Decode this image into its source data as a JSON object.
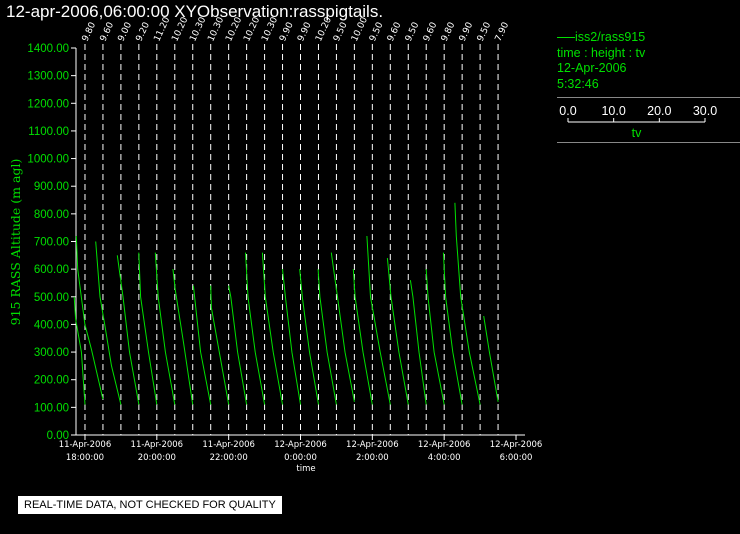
{
  "title": "12-apr-2006,06:00:00  XYObservation:rasspigtails.",
  "legend": {
    "series_label": "iss2/rass915",
    "line2": "time : height : tv",
    "line3": "12-Apr-2006",
    "line4": "5:32:46",
    "scale_ticks": [
      "0.0",
      "10.0",
      "20.0",
      "30.0"
    ],
    "scale_label": "tv"
  },
  "disclaimer": "REAL-TIME DATA, NOT CHECKED FOR QUALITY",
  "colors": {
    "trace": "#00e000",
    "axis": "#ffffff",
    "grid": "#ffffff",
    "background": "#000000"
  },
  "chart_data": {
    "type": "line",
    "xlabel": "time",
    "ylabel": "915 RASS Altitude (m agl)",
    "ylim": [
      0,
      1400
    ],
    "yticks": [
      "0.00",
      "100.00",
      "200.00",
      "300.00",
      "400.00",
      "500.00",
      "600.00",
      "700.00",
      "800.00",
      "900.00",
      "1000.00",
      "1100.00",
      "1200.00",
      "1300.00",
      "1400.00"
    ],
    "xlim_hours": [
      17.75,
      30.25
    ],
    "xticks": [
      {
        "hour": 18,
        "line1": "11-Apr-2006",
        "line2": "18:00:00"
      },
      {
        "hour": 20,
        "line1": "11-Apr-2006",
        "line2": "20:00:00"
      },
      {
        "hour": 22,
        "line1": "11-Apr-2006",
        "line2": "22:00:00"
      },
      {
        "hour": 24,
        "line1": "12-Apr-2006",
        "line2": "0:00:00"
      },
      {
        "hour": 26,
        "line1": "12-Apr-2006",
        "line2": "2:00:00"
      },
      {
        "hour": 28,
        "line1": "12-Apr-2006",
        "line2": "4:00:00"
      },
      {
        "hour": 30,
        "line1": "12-Apr-2006",
        "line2": "6:00:00"
      }
    ],
    "profiles": [
      {
        "hour": 18.0,
        "label": "9.80",
        "points": [
          [
            0.0,
            110
          ],
          [
            1.0,
            300
          ],
          [
            2.6,
            420
          ],
          [
            3.0,
            500
          ]
        ]
      },
      {
        "hour": 18.5,
        "label": "9.60",
        "points": [
          [
            0.0,
            130
          ],
          [
            3.2,
            310
          ],
          [
            5.0,
            400
          ],
          [
            6.0,
            500
          ],
          [
            7.0,
            600
          ],
          [
            7.4,
            720
          ]
        ]
      },
      {
        "hour": 19.0,
        "label": "9.00",
        "points": [
          [
            0.0,
            110
          ],
          [
            2.6,
            250
          ],
          [
            4.5,
            400
          ],
          [
            5.8,
            500
          ],
          [
            7.0,
            700
          ]
        ]
      },
      {
        "hour": 19.5,
        "label": "9.20",
        "points": [
          [
            0.0,
            110
          ],
          [
            2.6,
            300
          ],
          [
            4.4,
            500
          ],
          [
            6.0,
            650
          ]
        ]
      },
      {
        "hour": 20.0,
        "label": "11.20",
        "points": [
          [
            0.0,
            110
          ],
          [
            2.3,
            300
          ],
          [
            4.5,
            500
          ],
          [
            5.0,
            660
          ]
        ]
      },
      {
        "hour": 20.5,
        "label": "10.20",
        "points": [
          [
            0.0,
            110
          ],
          [
            2.6,
            300
          ],
          [
            4.6,
            500
          ],
          [
            5.4,
            660
          ]
        ]
      },
      {
        "hour": 21.0,
        "label": "10.30",
        "points": [
          [
            0.0,
            110
          ],
          [
            2.5,
            330
          ],
          [
            4.8,
            520
          ],
          [
            5.5,
            600
          ]
        ]
      },
      {
        "hour": 21.5,
        "label": "10.30",
        "points": [
          [
            0.0,
            110
          ],
          [
            2.8,
            300
          ],
          [
            4.8,
            540
          ]
        ]
      },
      {
        "hour": 22.0,
        "label": "10.20",
        "points": [
          [
            0.0,
            110
          ],
          [
            2.6,
            300
          ],
          [
            4.8,
            460
          ],
          [
            5.0,
            540
          ]
        ]
      },
      {
        "hour": 22.5,
        "label": "10.20",
        "points": [
          [
            0.0,
            110
          ],
          [
            2.5,
            300
          ],
          [
            4.4,
            500
          ],
          [
            5.0,
            540
          ]
        ]
      },
      {
        "hour": 23.0,
        "label": "10.30",
        "points": [
          [
            0.0,
            110
          ],
          [
            2.6,
            300
          ],
          [
            4.6,
            500
          ],
          [
            5.3,
            660
          ]
        ]
      },
      {
        "hour": 23.5,
        "label": "9.90",
        "points": [
          [
            0.0,
            110
          ],
          [
            2.6,
            300
          ],
          [
            4.8,
            500
          ],
          [
            5.6,
            660
          ]
        ]
      },
      {
        "hour": 24.0,
        "label": "9.90",
        "points": [
          [
            0.0,
            110
          ],
          [
            2.4,
            300
          ],
          [
            4.2,
            500
          ],
          [
            5.0,
            600
          ]
        ]
      },
      {
        "hour": 24.5,
        "label": "10.20",
        "points": [
          [
            0.0,
            110
          ],
          [
            2.5,
            300
          ],
          [
            4.5,
            500
          ],
          [
            5.2,
            600
          ]
        ]
      },
      {
        "hour": 25.0,
        "label": "9.50",
        "points": [
          [
            0.0,
            110
          ],
          [
            2.6,
            300
          ],
          [
            4.6,
            500
          ],
          [
            5.1,
            600
          ]
        ]
      },
      {
        "hour": 25.5,
        "label": "10.00",
        "points": [
          [
            0.0,
            120
          ],
          [
            2.6,
            300
          ],
          [
            4.7,
            500
          ],
          [
            6.0,
            620
          ],
          [
            6.4,
            660
          ]
        ]
      },
      {
        "hour": 26.0,
        "label": "9.50",
        "points": [
          [
            0.0,
            110
          ],
          [
            2.6,
            300
          ],
          [
            4.8,
            500
          ],
          [
            5.3,
            600
          ]
        ]
      },
      {
        "hour": 26.5,
        "label": "9.60",
        "points": [
          [
            0.0,
            110
          ],
          [
            2.8,
            300
          ],
          [
            5.5,
            500
          ],
          [
            6.5,
            720
          ]
        ]
      },
      {
        "hour": 27.0,
        "label": "9.50",
        "points": [
          [
            0.0,
            110
          ],
          [
            2.6,
            300
          ],
          [
            4.8,
            500
          ],
          [
            5.8,
            640
          ]
        ]
      },
      {
        "hour": 27.5,
        "label": "9.60",
        "points": [
          [
            0.0,
            110
          ],
          [
            2.0,
            300
          ],
          [
            3.7,
            500
          ],
          [
            4.4,
            560
          ]
        ]
      },
      {
        "hour": 28.0,
        "label": "9.80",
        "points": [
          [
            0.0,
            110
          ],
          [
            2.8,
            300
          ],
          [
            4.5,
            500
          ],
          [
            5.0,
            600
          ]
        ]
      },
      {
        "hour": 28.5,
        "label": "9.90",
        "points": [
          [
            0.0,
            110
          ],
          [
            2.6,
            300
          ],
          [
            4.6,
            500
          ],
          [
            5.2,
            660
          ]
        ]
      },
      {
        "hour": 29.0,
        "label": "9.50",
        "points": [
          [
            0.0,
            110
          ],
          [
            3.0,
            300
          ],
          [
            5.4,
            500
          ],
          [
            6.6,
            720
          ],
          [
            7.0,
            840
          ]
        ]
      },
      {
        "hour": 29.5,
        "label": "7.90",
        "points": [
          [
            0.0,
            120
          ],
          [
            2.4,
            300
          ],
          [
            4.0,
            430
          ]
        ]
      }
    ]
  }
}
